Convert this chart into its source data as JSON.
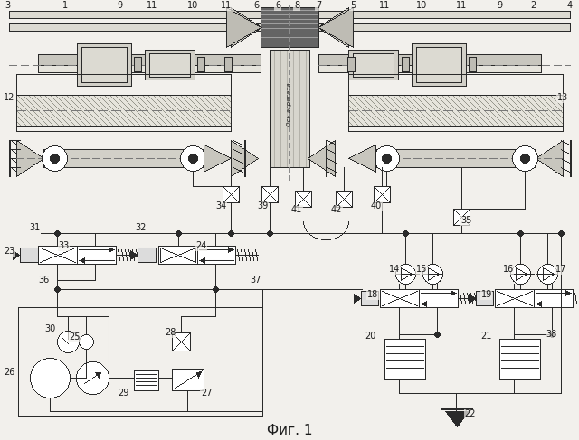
{
  "title": "Фиг. 1",
  "bg_color": "#f0eeea",
  "line_color": "#2a2a2a",
  "fig_width": 6.4,
  "fig_height": 4.87,
  "dpi": 100
}
